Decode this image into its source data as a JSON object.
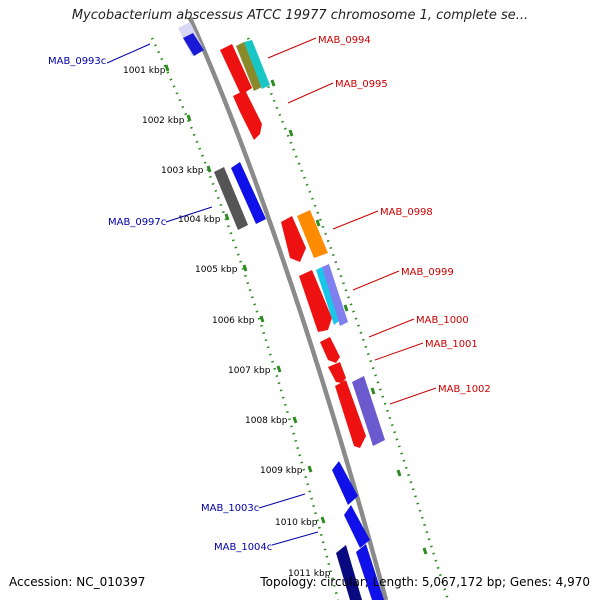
{
  "title": "Mycobacterium abscessus ATCC 19977 chromosome 1, complete se...",
  "footer": {
    "accession": "Accession: NC_010397",
    "summary": "Topology: circular; Length: 5,067,172 bp; Genes: 4,970"
  },
  "colors": {
    "backbone": "#888888",
    "ruler": "#2e8b22",
    "forward_label": "#cc0000",
    "reverse_label": "#0000aa"
  },
  "ticks": [
    "1001 kbp",
    "1002 kbp",
    "1003 kbp",
    "1004 kbp",
    "1005 kbp",
    "1006 kbp",
    "1007 kbp",
    "1008 kbp",
    "1009 kbp",
    "1010 kbp",
    "1011 kbp"
  ],
  "labels": {
    "forward": [
      "MAB_0994",
      "MAB_0995",
      "MAB_0998",
      "MAB_0999",
      "MAB_1000",
      "MAB_1001",
      "MAB_1002"
    ],
    "reverse": [
      "MAB_0993c",
      "MAB_0997c",
      "MAB_1003c",
      "MAB_1004c"
    ]
  }
}
